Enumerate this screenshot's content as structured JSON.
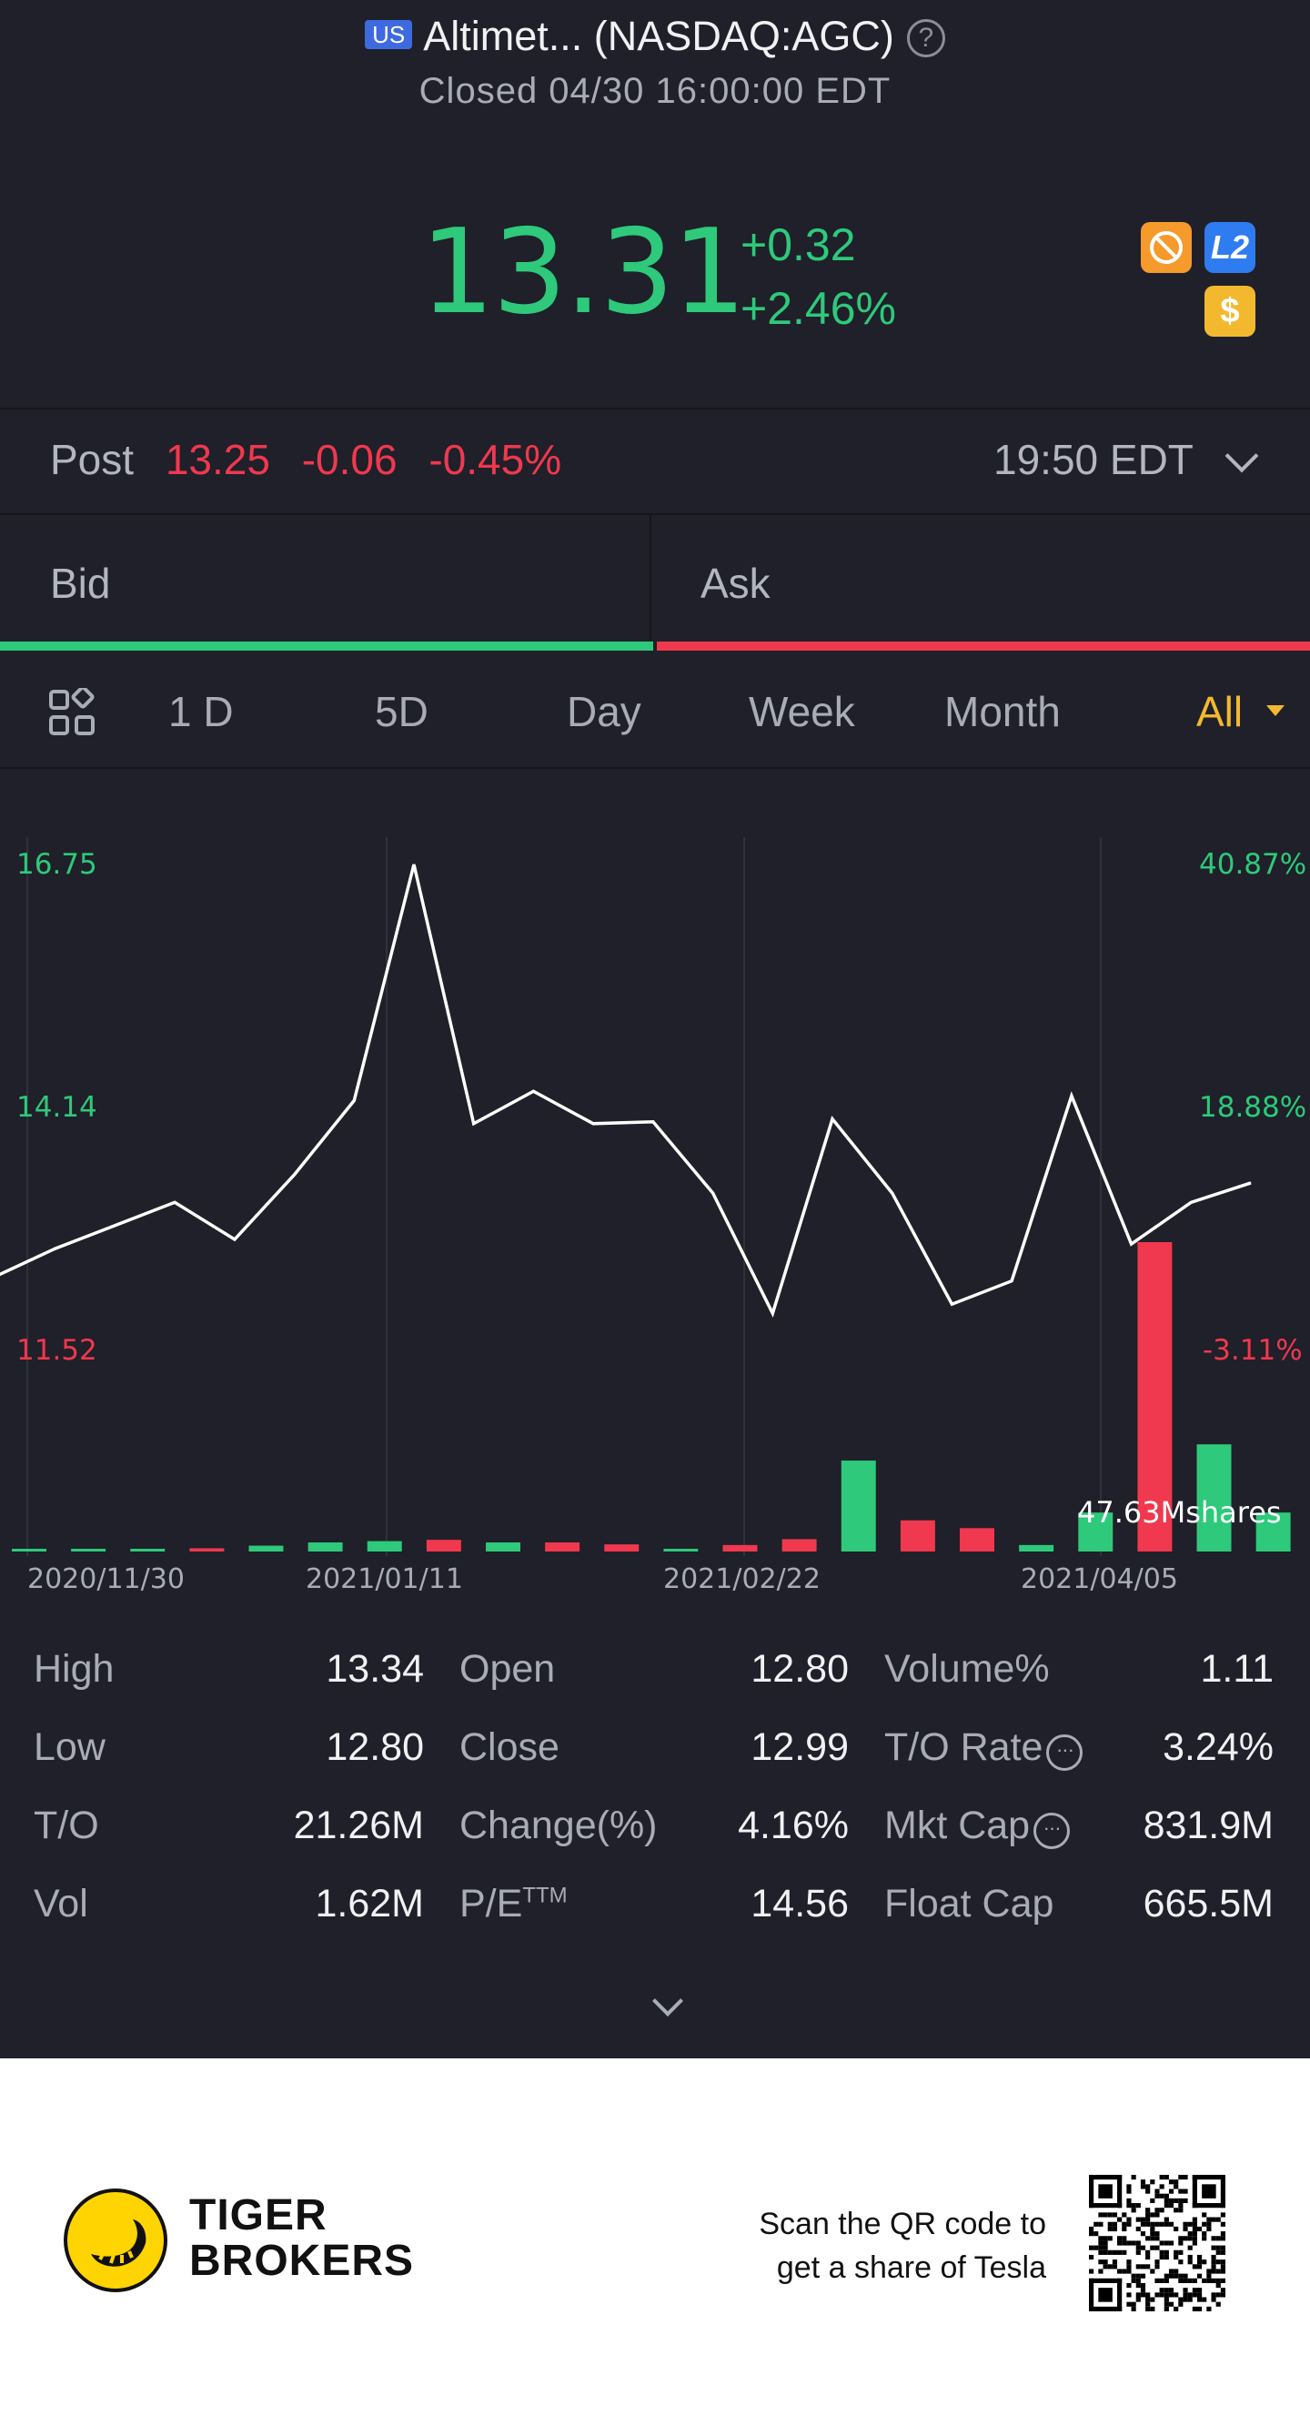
{
  "header": {
    "market_badge": "US",
    "title": "Altimet... (NASDAQ:AGC)",
    "help_icon": "?",
    "status": "Closed 04/30 16:00:00 EDT"
  },
  "quote": {
    "price": "13.31",
    "change": "+0.32",
    "change_pct": "+2.46%",
    "icons": [
      "no-ads-icon",
      "level2-icon",
      "dollar-icon"
    ],
    "level2_label": "L2",
    "dollar_label": "$"
  },
  "post": {
    "label": "Post",
    "price": "13.25",
    "change": "-0.06",
    "change_pct": "-0.45%",
    "time": "19:50 EDT"
  },
  "bid_ask": {
    "bid_label": "Bid",
    "ask_label": "Ask",
    "bid_ratio": 0.5
  },
  "tabs": [
    {
      "label": "1 D"
    },
    {
      "label": "5D"
    },
    {
      "label": "Day"
    },
    {
      "label": "Week"
    },
    {
      "label": "Month"
    },
    {
      "label": "All"
    }
  ],
  "active_tab": "All",
  "chart_data": {
    "type": "line",
    "y_left_ticks": [
      "16.75",
      "14.14",
      "11.52"
    ],
    "y_right_ticks": [
      "40.87%",
      "18.88%",
      "-3.11%"
    ],
    "x_tick_labels": [
      "2020/11/30",
      "2021/01/11",
      "2021/02/22",
      "2021/04/05"
    ],
    "ylim": [
      11.52,
      16.75
    ],
    "series": [
      {
        "values": [
          12.3,
          12.6,
          12.85,
          13.1,
          12.7,
          13.4,
          14.2,
          16.75,
          13.95,
          14.3,
          13.95,
          13.97,
          13.2,
          11.9,
          14.0,
          13.2,
          12.0,
          12.25,
          14.25,
          12.65,
          13.1,
          13.31
        ]
      }
    ],
    "volume": {
      "label": "47.63Mshares",
      "colors": {
        "up": "#2ec97b",
        "down": "#f0384e"
      },
      "bars": [
        {
          "v": 0.3,
          "up": true
        },
        {
          "v": 0.4,
          "up": true
        },
        {
          "v": 0.4,
          "up": true
        },
        {
          "v": 0.5,
          "up": false
        },
        {
          "v": 0.9,
          "up": true
        },
        {
          "v": 1.4,
          "up": true
        },
        {
          "v": 1.6,
          "up": true
        },
        {
          "v": 1.8,
          "up": false
        },
        {
          "v": 1.4,
          "up": true
        },
        {
          "v": 1.4,
          "up": false
        },
        {
          "v": 1.1,
          "up": false
        },
        {
          "v": 0.4,
          "up": true
        },
        {
          "v": 1.0,
          "up": false
        },
        {
          "v": 1.9,
          "up": false
        },
        {
          "v": 14.0,
          "up": true
        },
        {
          "v": 4.8,
          "up": false
        },
        {
          "v": 3.6,
          "up": false
        },
        {
          "v": 1.0,
          "up": true
        },
        {
          "v": 6.0,
          "up": true
        },
        {
          "v": 47.63,
          "up": false
        },
        {
          "v": 16.5,
          "up": true
        },
        {
          "v": 6.0,
          "up": true
        }
      ]
    }
  },
  "stats": [
    {
      "label": "High",
      "value": "13.34"
    },
    {
      "label": "Low",
      "value": "12.80"
    },
    {
      "label": "T/O",
      "value": "21.26M"
    },
    {
      "label": "Vol",
      "value": "1.62M"
    },
    {
      "label": "Open",
      "value": "12.80"
    },
    {
      "label": "Close",
      "value": "12.99"
    },
    {
      "label": "Change(%)",
      "value": "4.16%"
    },
    {
      "label": "P/E",
      "label_sup": "TTM",
      "value": "14.56"
    },
    {
      "label": "Volume%",
      "value": "1.11"
    },
    {
      "label": "T/O Rate",
      "value": "3.24%"
    },
    {
      "label": "Mkt Cap",
      "value": "831.9M"
    },
    {
      "label": "Float Cap",
      "value": "665.5M"
    }
  ],
  "footer": {
    "brand_line1": "TIGER",
    "brand_line2": "BROKERS",
    "scan_line1": "Scan the QR code to",
    "scan_line2": "get a share of Tesla"
  },
  "colors": {
    "up": "#2ec97b",
    "down": "#f0384e",
    "accent": "#f3b92e",
    "bg": "#1f2029"
  }
}
